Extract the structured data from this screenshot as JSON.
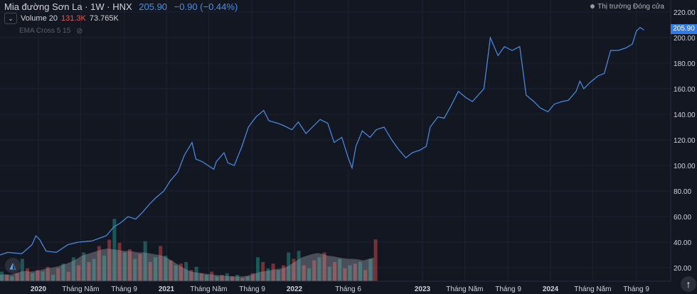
{
  "header": {
    "title": "Mia đường Sơn La · 1W · HNX",
    "price": "205.90",
    "change": "−0.90 (−0.44%)"
  },
  "volume_legend": {
    "label": "Volume 20",
    "value": "131.3K",
    "ma": "73.765K"
  },
  "ema_legend": {
    "label": "EMA Cross 5 15"
  },
  "market_status": "Thị trường Đóng cửa",
  "last_price_tag": "205.90",
  "colors": {
    "line": "#4a8fe7",
    "up": "#26a69a",
    "down": "#ef5350",
    "bg": "#131722"
  },
  "chart_data": {
    "type": "line",
    "title": "Mia đường Sơn La · 1W · HNX",
    "yticks": [
      "20.00",
      "40.00",
      "60.00",
      "80.00",
      "100.00",
      "120.00",
      "140.00",
      "160.00",
      "180.00",
      "200.00",
      "220.00"
    ],
    "ylim": [
      12,
      224
    ],
    "xlim": [
      2019.7,
      2024.83
    ],
    "xticks": [
      {
        "t": 2020.0,
        "label": "2020"
      },
      {
        "t": 2020.33,
        "label": "Tháng Năm"
      },
      {
        "t": 2020.67,
        "label": "Tháng 9"
      },
      {
        "t": 2021.0,
        "label": "2021"
      },
      {
        "t": 2021.33,
        "label": "Tháng Năm"
      },
      {
        "t": 2021.67,
        "label": "Tháng 9"
      },
      {
        "t": 2022.0,
        "label": "2022"
      },
      {
        "t": 2022.42,
        "label": "Tháng 6"
      },
      {
        "t": 2023.0,
        "label": "2023"
      },
      {
        "t": 2023.33,
        "label": "Tháng Năm"
      },
      {
        "t": 2023.67,
        "label": "Tháng 9"
      },
      {
        "t": 2024.0,
        "label": "2024"
      },
      {
        "t": 2024.33,
        "label": "Tháng Năm"
      },
      {
        "t": 2024.67,
        "label": "Tháng 9"
      }
    ],
    "series": [
      {
        "name": "Close",
        "points": [
          [
            2019.7,
            30
          ],
          [
            2019.76,
            32
          ],
          [
            2019.87,
            31
          ],
          [
            2019.95,
            38
          ],
          [
            2019.98,
            45
          ],
          [
            2020.01,
            42
          ],
          [
            2020.06,
            33
          ],
          [
            2020.14,
            32
          ],
          [
            2020.23,
            38
          ],
          [
            2020.31,
            40
          ],
          [
            2020.42,
            41
          ],
          [
            2020.53,
            45
          ],
          [
            2020.59,
            52
          ],
          [
            2020.64,
            55
          ],
          [
            2020.7,
            60
          ],
          [
            2020.76,
            58
          ],
          [
            2020.81,
            63
          ],
          [
            2020.87,
            70
          ],
          [
            2020.92,
            75
          ],
          [
            2020.98,
            80
          ],
          [
            2021.03,
            88
          ],
          [
            2021.09,
            95
          ],
          [
            2021.14,
            108
          ],
          [
            2021.2,
            118
          ],
          [
            2021.23,
            105
          ],
          [
            2021.28,
            103
          ],
          [
            2021.37,
            97
          ],
          [
            2021.39,
            103
          ],
          [
            2021.45,
            110
          ],
          [
            2021.48,
            102
          ],
          [
            2021.53,
            100
          ],
          [
            2021.59,
            115
          ],
          [
            2021.64,
            130
          ],
          [
            2021.7,
            138
          ],
          [
            2021.76,
            143
          ],
          [
            2021.8,
            135
          ],
          [
            2021.87,
            133
          ],
          [
            2021.92,
            131
          ],
          [
            2021.98,
            128
          ],
          [
            2022.03,
            134
          ],
          [
            2022.09,
            125
          ],
          [
            2022.14,
            130
          ],
          [
            2022.2,
            136
          ],
          [
            2022.26,
            133
          ],
          [
            2022.31,
            118
          ],
          [
            2022.37,
            122
          ],
          [
            2022.42,
            106
          ],
          [
            2022.45,
            98
          ],
          [
            2022.48,
            115
          ],
          [
            2022.53,
            127
          ],
          [
            2022.59,
            122
          ],
          [
            2022.64,
            128
          ],
          [
            2022.7,
            130
          ],
          [
            2022.76,
            120
          ],
          [
            2022.81,
            113
          ],
          [
            2022.87,
            106
          ],
          [
            2022.92,
            110
          ],
          [
            2022.98,
            112
          ],
          [
            2023.03,
            115
          ],
          [
            2023.06,
            130
          ],
          [
            2023.12,
            138
          ],
          [
            2023.17,
            137
          ],
          [
            2023.23,
            148
          ],
          [
            2023.28,
            158
          ],
          [
            2023.34,
            153
          ],
          [
            2023.39,
            150
          ],
          [
            2023.48,
            160
          ],
          [
            2023.53,
            200
          ],
          [
            2023.59,
            186
          ],
          [
            2023.64,
            193
          ],
          [
            2023.7,
            190
          ],
          [
            2023.76,
            193
          ],
          [
            2023.81,
            155
          ],
          [
            2023.87,
            150
          ],
          [
            2023.92,
            145
          ],
          [
            2023.98,
            142
          ],
          [
            2024.03,
            148
          ],
          [
            2024.09,
            150
          ],
          [
            2024.14,
            151
          ],
          [
            2024.2,
            158
          ],
          [
            2024.23,
            166
          ],
          [
            2024.26,
            160
          ],
          [
            2024.31,
            165
          ],
          [
            2024.37,
            170
          ],
          [
            2024.42,
            172
          ],
          [
            2024.47,
            190
          ],
          [
            2024.53,
            190
          ],
          [
            2024.59,
            192
          ],
          [
            2024.64,
            195
          ],
          [
            2024.67,
            205
          ],
          [
            2024.7,
            208
          ],
          [
            2024.73,
            205.9
          ]
        ]
      }
    ],
    "volume": {
      "unit": "K",
      "start": 2019.7,
      "step": 0.04,
      "bars": [
        [
          30,
          1
        ],
        [
          20,
          0
        ],
        [
          15,
          1
        ],
        [
          25,
          0
        ],
        [
          70,
          1
        ],
        [
          40,
          0
        ],
        [
          25,
          1
        ],
        [
          35,
          0
        ],
        [
          30,
          1
        ],
        [
          45,
          0
        ],
        [
          20,
          1
        ],
        [
          40,
          0
        ],
        [
          55,
          1
        ],
        [
          30,
          0
        ],
        [
          75,
          1
        ],
        [
          50,
          0
        ],
        [
          90,
          1
        ],
        [
          60,
          0
        ],
        [
          70,
          1
        ],
        [
          110,
          0
        ],
        [
          80,
          1
        ],
        [
          130,
          0
        ],
        [
          195,
          1
        ],
        [
          120,
          0
        ],
        [
          90,
          1
        ],
        [
          100,
          0
        ],
        [
          70,
          1
        ],
        [
          85,
          0
        ],
        [
          125,
          1
        ],
        [
          60,
          0
        ],
        [
          75,
          1
        ],
        [
          110,
          0
        ],
        [
          80,
          1
        ],
        [
          65,
          0
        ],
        [
          50,
          1
        ],
        [
          55,
          0
        ],
        [
          60,
          1
        ],
        [
          35,
          0
        ],
        [
          45,
          1
        ],
        [
          25,
          0
        ],
        [
          20,
          1
        ],
        [
          30,
          0
        ],
        [
          15,
          1
        ],
        [
          20,
          0
        ],
        [
          25,
          1
        ],
        [
          15,
          0
        ],
        [
          20,
          1
        ],
        [
          10,
          0
        ],
        [
          15,
          1
        ],
        [
          25,
          0
        ],
        [
          75,
          1
        ],
        [
          60,
          0
        ],
        [
          40,
          1
        ],
        [
          55,
          0
        ],
        [
          35,
          1
        ],
        [
          50,
          0
        ],
        [
          90,
          1
        ],
        [
          70,
          0
        ],
        [
          95,
          1
        ],
        [
          50,
          0
        ],
        [
          40,
          1
        ],
        [
          65,
          0
        ],
        [
          75,
          1
        ],
        [
          90,
          0
        ],
        [
          45,
          1
        ],
        [
          60,
          0
        ],
        [
          70,
          1
        ],
        [
          40,
          0
        ],
        [
          50,
          1
        ],
        [
          55,
          0
        ],
        [
          60,
          1
        ],
        [
          35,
          0
        ],
        [
          70,
          1
        ],
        [
          131,
          0
        ]
      ],
      "ma": [
        20,
        22,
        20,
        25,
        30,
        32,
        30,
        32,
        35,
        40,
        42,
        45,
        50,
        55,
        62,
        70,
        80,
        85,
        90,
        95,
        100,
        102,
        100,
        98,
        95,
        95,
        93,
        90,
        90,
        88,
        85,
        82,
        78,
        70,
        60,
        50,
        40,
        32,
        28,
        26,
        24,
        22,
        20,
        18,
        17,
        16,
        15,
        15,
        16,
        20,
        25,
        30,
        32,
        35,
        38,
        40,
        45,
        55,
        65,
        75,
        80,
        85,
        88,
        85,
        80,
        78,
        75,
        72,
        70,
        70,
        68,
        65,
        70,
        74
      ]
    }
  }
}
